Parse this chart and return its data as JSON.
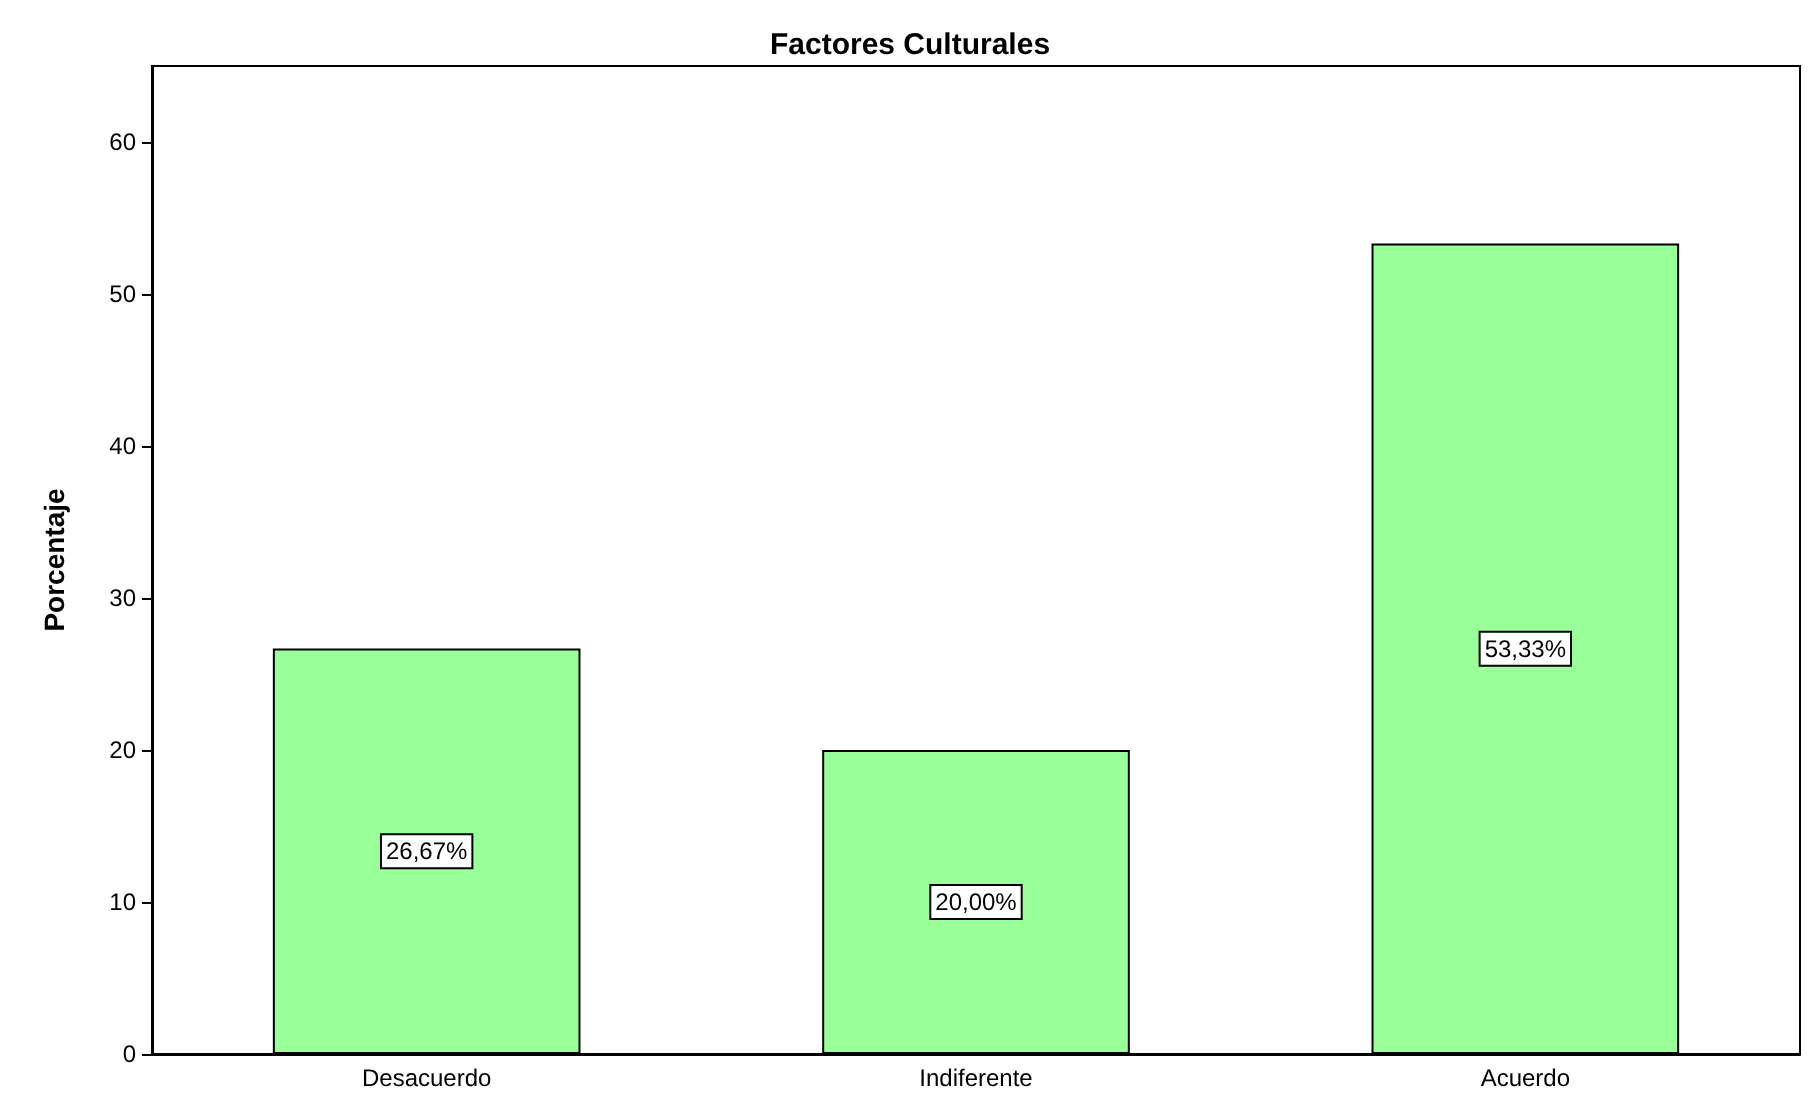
{
  "chart_data": {
    "type": "bar",
    "title": "Factores Culturales",
    "ylabel": "Porcentaje",
    "categories": [
      "Desacuerdo",
      "Indiferente",
      "Acuerdo"
    ],
    "values": [
      26.67,
      20.0,
      53.33
    ],
    "color": "#99ff99",
    "value_labels": [
      "26,67%",
      "20,00%",
      "53,33%"
    ],
    "ylim": [
      0,
      65
    ],
    "yticks": [
      0,
      10,
      20,
      30,
      40,
      50,
      60
    ],
    "grid": false
  }
}
